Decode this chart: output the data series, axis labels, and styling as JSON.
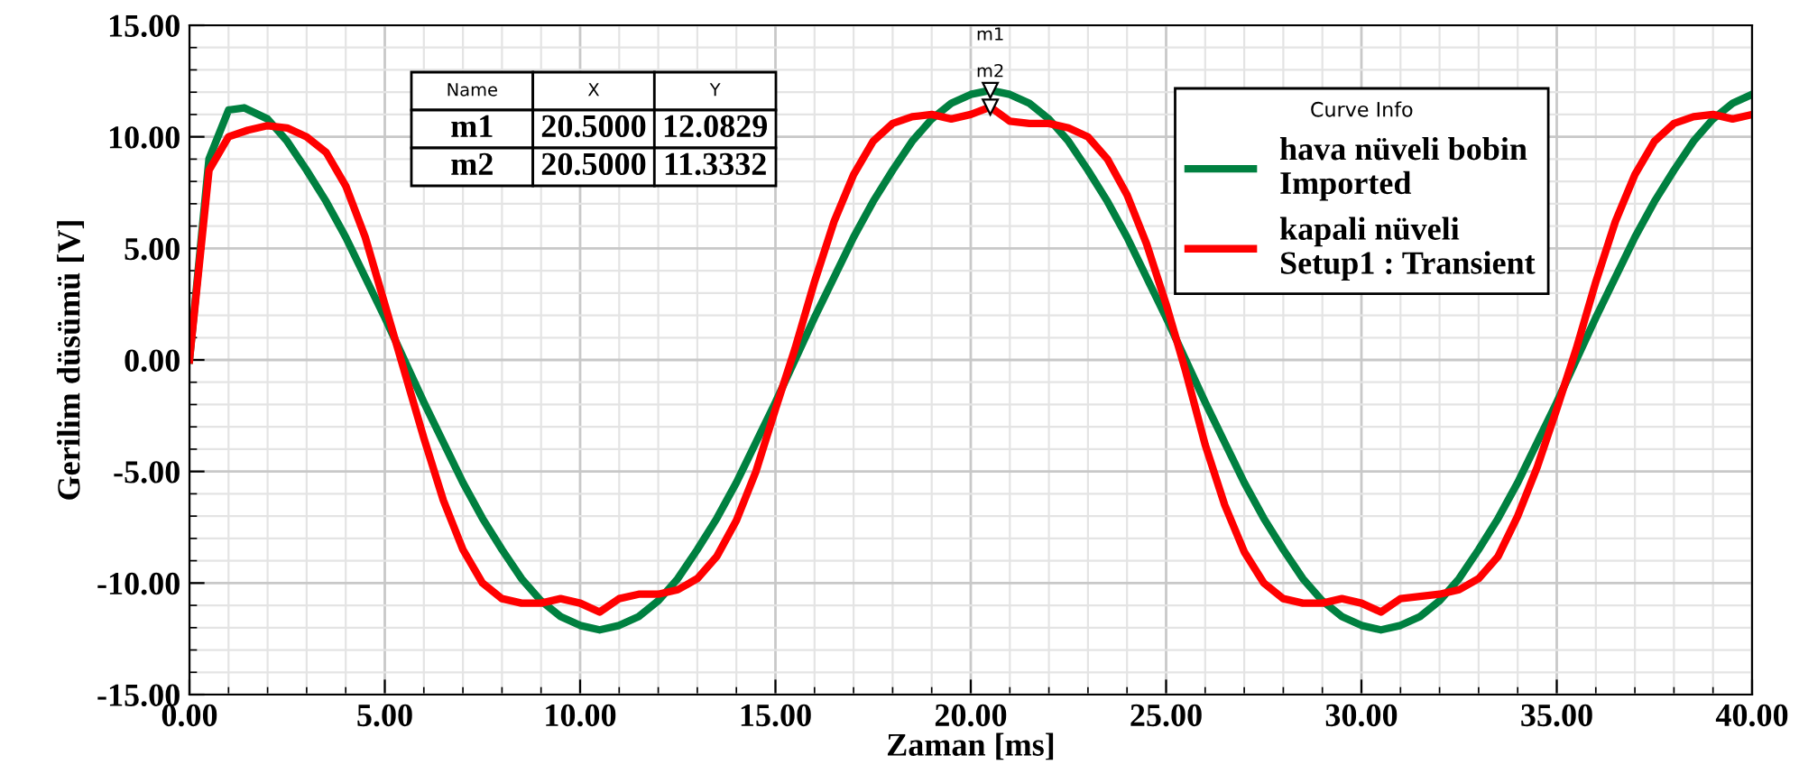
{
  "chart_data": {
    "type": "line",
    "xlabel": "Zaman [ms]",
    "ylabel": "Gerilim düsümü [V]",
    "legend_title": "Curve Info",
    "legend": "top right",
    "grid": true,
    "xlim": [
      0,
      40
    ],
    "ylim": [
      -15,
      15
    ],
    "xticks": [
      {
        "value": 0,
        "label": "0.00"
      },
      {
        "value": 5,
        "label": "5.00"
      },
      {
        "value": 10,
        "label": "10.00"
      },
      {
        "value": 15,
        "label": "15.00"
      },
      {
        "value": 20,
        "label": "20.00"
      },
      {
        "value": 25,
        "label": "25.00"
      },
      {
        "value": 30,
        "label": "30.00"
      },
      {
        "value": 35,
        "label": "35.00"
      },
      {
        "value": 40,
        "label": "40.00"
      }
    ],
    "yticks": [
      {
        "value": -15,
        "label": "-15.00"
      },
      {
        "value": -10,
        "label": "-10.00"
      },
      {
        "value": -5,
        "label": "-5.00"
      },
      {
        "value": 0,
        "label": "0.00"
      },
      {
        "value": 5,
        "label": "5.00"
      },
      {
        "value": 10,
        "label": "10.00"
      },
      {
        "value": 15,
        "label": "15.00"
      }
    ],
    "series": [
      {
        "name": "hava nüveli bobin\nImported",
        "color": "#008040",
        "x": [
          0,
          0.5,
          1,
          1.4,
          2,
          2.5,
          3,
          3.5,
          4,
          4.5,
          5,
          5.5,
          6,
          6.5,
          7,
          7.5,
          8,
          8.5,
          9,
          9.5,
          10,
          10.5,
          11,
          11.5,
          12,
          12.5,
          13,
          13.5,
          14,
          14.5,
          15,
          15.5,
          16,
          16.5,
          17,
          17.5,
          18,
          18.5,
          19,
          19.5,
          20,
          20.5,
          21,
          21.5,
          22,
          22.5,
          23,
          23.5,
          24,
          24.5,
          25,
          25.5,
          26,
          26.5,
          27,
          27.5,
          28,
          28.5,
          29,
          29.5,
          30,
          30.5,
          31,
          31.5,
          32,
          32.5,
          33,
          33.5,
          34,
          34.5,
          35,
          35.5,
          36,
          36.5,
          37,
          37.5,
          38,
          38.5,
          39,
          39.5,
          40
        ],
        "values": [
          0,
          9.0,
          11.2,
          11.3,
          10.8,
          9.8,
          8.5,
          7.1,
          5.5,
          3.7,
          1.9,
          0,
          -1.9,
          -3.7,
          -5.5,
          -7.1,
          -8.5,
          -9.8,
          -10.8,
          -11.5,
          -11.9,
          -12.1,
          -11.9,
          -11.5,
          -10.8,
          -9.8,
          -8.5,
          -7.1,
          -5.5,
          -3.7,
          -1.9,
          0,
          1.9,
          3.7,
          5.5,
          7.1,
          8.5,
          9.8,
          10.8,
          11.5,
          11.9,
          12.0829,
          11.9,
          11.5,
          10.8,
          9.8,
          8.5,
          7.1,
          5.5,
          3.7,
          1.9,
          0,
          -1.9,
          -3.7,
          -5.5,
          -7.1,
          -8.5,
          -9.8,
          -10.8,
          -11.5,
          -11.9,
          -12.1,
          -11.9,
          -11.5,
          -10.8,
          -9.8,
          -8.5,
          -7.1,
          -5.5,
          -3.7,
          -1.9,
          0,
          1.9,
          3.7,
          5.5,
          7.1,
          8.5,
          9.8,
          10.8,
          11.5,
          11.9
        ]
      },
      {
        "name": "kapali nüveli\nSetup1 : Transient",
        "color": "#ff0000",
        "x": [
          0,
          0.5,
          1,
          1.5,
          2,
          2.5,
          3,
          3.5,
          4,
          4.5,
          5,
          5.5,
          6,
          6.5,
          7,
          7.5,
          8,
          8.5,
          9,
          9.5,
          10,
          10.5,
          11,
          11.5,
          12,
          12.5,
          13,
          13.5,
          14,
          14.5,
          15,
          15.5,
          16,
          16.5,
          17,
          17.5,
          18,
          18.5,
          19,
          19.5,
          20,
          20.5,
          21,
          21.5,
          22,
          22.5,
          23,
          23.5,
          24,
          24.5,
          25,
          25.5,
          26,
          26.5,
          27,
          27.5,
          28,
          28.5,
          29,
          29.5,
          30,
          30.5,
          31,
          31.5,
          32,
          32.5,
          33,
          33.5,
          34,
          34.5,
          35,
          35.5,
          36,
          36.5,
          37,
          37.5,
          38,
          38.5,
          39,
          39.5,
          40
        ],
        "values": [
          0,
          8.5,
          10.0,
          10.3,
          10.5,
          10.4,
          10.0,
          9.3,
          7.8,
          5.5,
          2.5,
          -0.5,
          -3.5,
          -6.3,
          -8.5,
          -10.0,
          -10.7,
          -10.9,
          -10.9,
          -10.7,
          -10.9,
          -11.3,
          -10.7,
          -10.5,
          -10.5,
          -10.3,
          -9.8,
          -8.8,
          -7.2,
          -5.0,
          -2.2,
          0.5,
          3.5,
          6.2,
          8.3,
          9.8,
          10.6,
          10.9,
          11.0,
          10.8,
          11.0,
          11.3332,
          10.7,
          10.6,
          10.6,
          10.4,
          10.0,
          9.0,
          7.4,
          5.2,
          2.5,
          -0.5,
          -3.8,
          -6.5,
          -8.6,
          -10.0,
          -10.7,
          -10.9,
          -10.9,
          -10.7,
          -10.9,
          -11.3,
          -10.7,
          -10.6,
          -10.5,
          -10.3,
          -9.8,
          -8.8,
          -7.0,
          -4.8,
          -2.2,
          0.5,
          3.5,
          6.2,
          8.3,
          9.8,
          10.6,
          10.9,
          11.0,
          10.8,
          11.0
        ]
      }
    ],
    "annotations": [
      "Name",
      "X",
      "Y",
      "m1",
      "20.5000",
      "12.0829",
      "m2",
      "20.5000",
      "11.3332",
      {
        "text": "m1",
        "x": 20.5,
        "y": 12.0829
      },
      {
        "text": "m2",
        "x": 20.5,
        "y": 11.3332
      }
    ]
  }
}
